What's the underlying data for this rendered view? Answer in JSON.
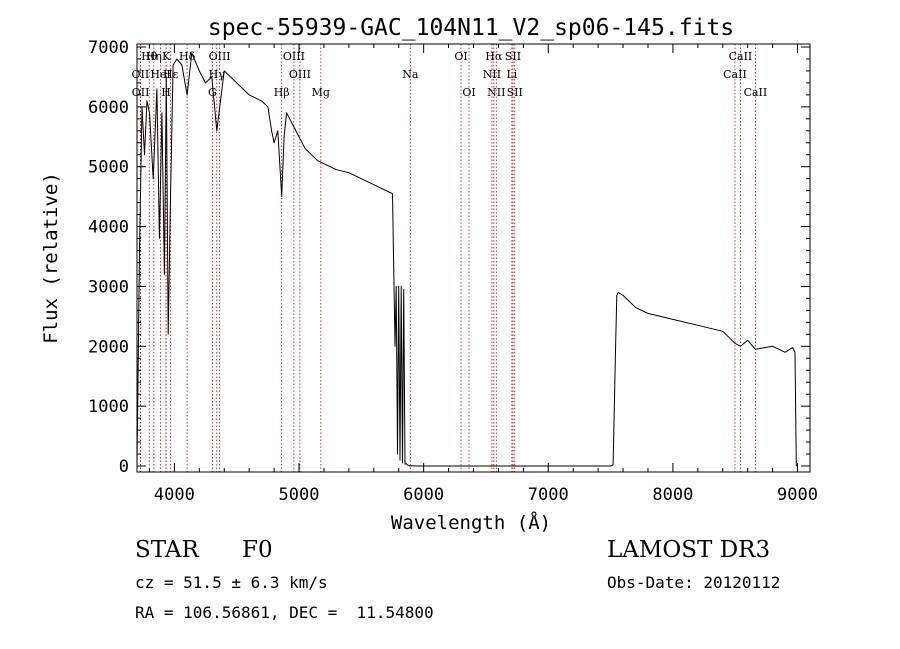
{
  "chart_data": {
    "type": "line",
    "title": "spec-55939-GAC_104N11_V2_sp06-145.fits",
    "xlabel": "Wavelength (Å)",
    "ylabel": "Flux (relative)",
    "xlim": [
      3700,
      9100
    ],
    "ylim": [
      -100,
      7050
    ],
    "xticks": [
      4000,
      5000,
      6000,
      7000,
      8000,
      9000
    ],
    "yticks": [
      0,
      1000,
      2000,
      3000,
      4000,
      5000,
      6000,
      7000
    ],
    "line_color": "#000000",
    "marker_color": "#cc0000",
    "spectrum": {
      "x": [
        3700,
        3720,
        3740,
        3760,
        3780,
        3800,
        3830,
        3860,
        3880,
        3900,
        3920,
        3935,
        3950,
        3968,
        3990,
        4020,
        4060,
        4102,
        4140,
        4200,
        4250,
        4300,
        4340,
        4400,
        4450,
        4500,
        4550,
        4600,
        4650,
        4700,
        4750,
        4780,
        4800,
        4830,
        4861,
        4880,
        4900,
        4950,
        5000,
        5050,
        5100,
        5150,
        5200,
        5300,
        5400,
        5500,
        5600,
        5700,
        5750,
        5770,
        5780,
        5790,
        5800,
        5810,
        5820,
        5830,
        5840,
        5850,
        5860,
        5870,
        5880,
        5890,
        5900,
        5950,
        6000,
        6200,
        6400,
        6600,
        6800,
        7000,
        7200,
        7400,
        7500,
        7520,
        7540,
        7550,
        7560,
        7600,
        7700,
        7800,
        8000,
        8200,
        8400,
        8498,
        8542,
        8600,
        8662,
        8800,
        8900,
        8960,
        8980,
        8990
      ],
      "y": [
        0,
        3600,
        6000,
        5200,
        6100,
        5900,
        4800,
        6300,
        3800,
        5900,
        3200,
        6500,
        2200,
        4400,
        6700,
        6800,
        6700,
        6200,
        6900,
        6600,
        6400,
        6500,
        5600,
        6600,
        6500,
        6400,
        6300,
        6200,
        6150,
        6100,
        6000,
        5600,
        5400,
        5600,
        4500,
        5500,
        5900,
        5700,
        5500,
        5300,
        5200,
        5100,
        5050,
        4950,
        4900,
        4800,
        4700,
        4600,
        4550,
        2000,
        3000,
        200,
        3000,
        100,
        3000,
        50,
        2950,
        30,
        40,
        20,
        10,
        0,
        5,
        0,
        0,
        0,
        0,
        0,
        0,
        0,
        0,
        0,
        0,
        20,
        2000,
        2850,
        2900,
        2850,
        2650,
        2550,
        2450,
        2350,
        2250,
        2050,
        2000,
        2100,
        1950,
        2000,
        1900,
        1980,
        1900,
        0
      ]
    },
    "lines": [
      {
        "label": "Hβ",
        "x": 4861,
        "row": 2
      },
      {
        "label": "OIII",
        "x": 4959,
        "row": 0
      },
      {
        "label": "OIII",
        "x": 5007,
        "row": 1
      },
      {
        "label": "Mg",
        "x": 5175,
        "row": 2
      },
      {
        "label": "Na",
        "x": 5893,
        "row": 1
      },
      {
        "label": "OI",
        "x": 6300,
        "row": 0
      },
      {
        "label": "OI",
        "x": 6364,
        "row": 2
      },
      {
        "label": "Hα",
        "x": 6563,
        "row": 0
      },
      {
        "label": "NII",
        "x": 6548,
        "row": 1
      },
      {
        "label": "NII",
        "x": 6583,
        "row": 2
      },
      {
        "label": "SII",
        "x": 6717,
        "row": 0
      },
      {
        "label": "Li",
        "x": 6708,
        "row": 1
      },
      {
        "label": "SII",
        "x": 6731,
        "row": 2
      },
      {
        "label": "CaII",
        "x": 8542,
        "row": 0
      },
      {
        "label": "CaII",
        "x": 8498,
        "row": 1
      },
      {
        "label": "CaII",
        "x": 8662,
        "row": 2
      },
      {
        "label": "Hθ",
        "x": 3798,
        "row": 0
      },
      {
        "label": "OII",
        "x": 3727,
        "row": 1
      },
      {
        "label": "OII",
        "x": 3729,
        "row": 2
      },
      {
        "label": "Hη",
        "x": 3835,
        "row": 0
      },
      {
        "label": "HeI",
        "x": 3889,
        "row": 1
      },
      {
        "label": "H",
        "x": 3933,
        "row": 2
      },
      {
        "label": "K",
        "x": 3934,
        "row": 0
      },
      {
        "label": "Hε",
        "x": 3970,
        "row": 1
      },
      {
        "label": "Hδ",
        "x": 4102,
        "row": 0
      },
      {
        "label": "G",
        "x": 4305,
        "row": 2
      },
      {
        "label": "OIII",
        "x": 4363,
        "row": 0
      },
      {
        "label": "Hγ",
        "x": 4340,
        "row": 1
      }
    ]
  },
  "info": {
    "class": "STAR",
    "subclass": "F0",
    "survey": "LAMOST DR3",
    "cz": "cz = 51.5 ± 6.3 km/s",
    "obs_date": "Obs-Date: 20120112",
    "coords": "RA = 106.56861, DEC =  11.54800"
  }
}
